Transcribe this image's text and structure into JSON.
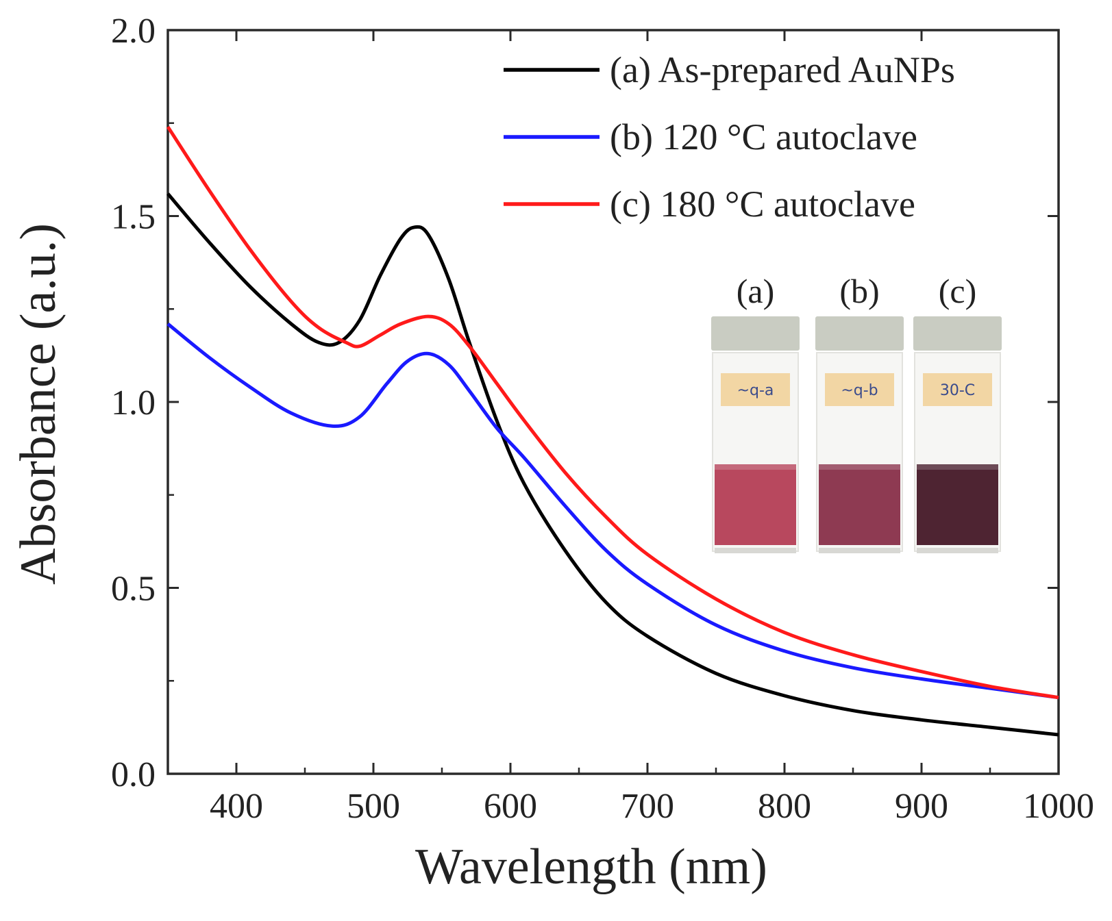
{
  "chart_data": {
    "type": "line",
    "title": "",
    "xlabel": "Wavelength (nm)",
    "ylabel": "Absorbance (a.u.)",
    "xlim": [
      350,
      1000
    ],
    "ylim": [
      0.0,
      2.0
    ],
    "x_ticks": [
      "400",
      "500",
      "600",
      "700",
      "800",
      "900",
      "1000"
    ],
    "x_tick_values": [
      400,
      500,
      600,
      700,
      800,
      900,
      1000
    ],
    "y_ticks": [
      "0.0",
      "0.5",
      "1.0",
      "1.5",
      "2.0"
    ],
    "y_tick_values": [
      0.0,
      0.5,
      1.0,
      1.5,
      2.0
    ],
    "legend_position": "top-right",
    "series": [
      {
        "name": "(a) As-prepared AuNPs",
        "color": "#000000",
        "x": [
          350,
          380,
          410,
          440,
          460,
          475,
          490,
          505,
          520,
          530,
          540,
          555,
          570,
          590,
          610,
          640,
          670,
          700,
          750,
          800,
          850,
          900,
          950,
          1000
        ],
        "y": [
          1.56,
          1.43,
          1.31,
          1.21,
          1.16,
          1.16,
          1.22,
          1.34,
          1.44,
          1.47,
          1.45,
          1.33,
          1.16,
          0.95,
          0.78,
          0.6,
          0.46,
          0.37,
          0.27,
          0.21,
          0.17,
          0.145,
          0.125,
          0.105
        ]
      },
      {
        "name": "(b) 120 °C autoclave",
        "color": "#1a1aff",
        "x": [
          350,
          380,
          410,
          440,
          470,
          490,
          510,
          525,
          540,
          555,
          570,
          590,
          610,
          640,
          670,
          700,
          750,
          800,
          850,
          900,
          950,
          1000
        ],
        "y": [
          1.21,
          1.12,
          1.04,
          0.97,
          0.935,
          0.96,
          1.05,
          1.11,
          1.13,
          1.1,
          1.03,
          0.93,
          0.85,
          0.72,
          0.6,
          0.51,
          0.4,
          0.33,
          0.285,
          0.255,
          0.23,
          0.205
        ]
      },
      {
        "name": "(c) 180 °C autoclave",
        "color": "#ff1a1a",
        "x": [
          350,
          380,
          410,
          440,
          460,
          480,
          490,
          505,
          520,
          540,
          555,
          570,
          590,
          610,
          640,
          670,
          700,
          750,
          800,
          850,
          900,
          950,
          1000
        ],
        "y": [
          1.74,
          1.57,
          1.41,
          1.27,
          1.2,
          1.16,
          1.15,
          1.18,
          1.21,
          1.23,
          1.21,
          1.15,
          1.05,
          0.95,
          0.81,
          0.69,
          0.59,
          0.47,
          0.38,
          0.32,
          0.275,
          0.235,
          0.205
        ]
      }
    ],
    "inset": {
      "labels": [
        "(a)",
        "(b)",
        "(c)"
      ],
      "vial_labels": [
        "~q-a",
        "~q-b",
        "30-C"
      ],
      "solution_colors": [
        "#b8485e",
        "#8e3a52",
        "#4e2432"
      ]
    }
  }
}
